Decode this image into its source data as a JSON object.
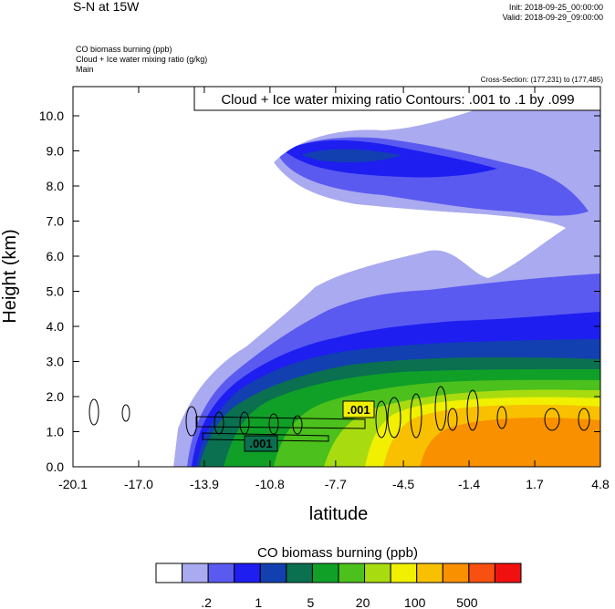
{
  "header": {
    "title": "S-N at 15W",
    "init": "Init: 2018-09-25_00:00:00",
    "valid": "Valid: 2018-09-29_09:00:00",
    "field1": "CO biomass burning   (ppb)",
    "field2": "Cloud + Ice water mixing ratio   (g/kg)",
    "field3": "Main",
    "cross_section": "Cross-Section: (177,231) to (177,485)"
  },
  "chart_data": {
    "type": "heatmap",
    "title": "Cloud + Ice water mixing ratio Contours: .001 to .1 by .099",
    "xlabel": "latitude",
    "ylabel": "Height (km)",
    "xlim": [
      -20.1,
      4.8
    ],
    "ylim": [
      0.0,
      10.0
    ],
    "xticks": [
      "-20.1",
      "-17.0",
      "-13.9",
      "-10.8",
      "-7.7",
      "-4.5",
      "-1.4",
      "1.7",
      "4.8"
    ],
    "yticks": [
      "0.0",
      "1.0",
      "2.0",
      "3.0",
      "4.0",
      "5.0",
      "6.0",
      "7.0",
      "8.0",
      "9.0",
      "10.0"
    ],
    "contour_labels": [
      ".001",
      ".001"
    ],
    "colorbar": {
      "title": "CO biomass burning  (ppb)",
      "colors": [
        "#ffffff",
        "#aaaaf0",
        "#5a5af0",
        "#1e1ef0",
        "#1240b0",
        "#0a7050",
        "#10a028",
        "#4cc01c",
        "#a8dc10",
        "#f0f000",
        "#f8c000",
        "#f89000",
        "#f85010",
        "#f01010"
      ],
      "tick_labels": [
        ".2",
        "1",
        "5",
        "20",
        "100",
        "500"
      ]
    }
  }
}
